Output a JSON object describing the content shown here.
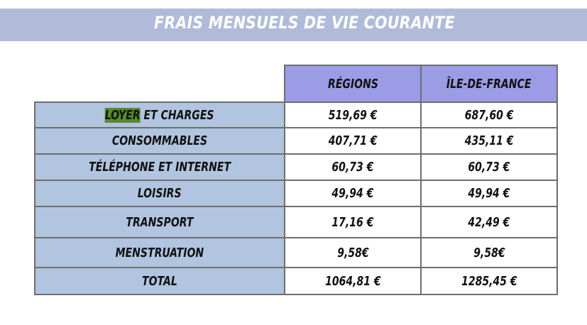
{
  "title": "FRAIS MENSUELS DE VIE COURANTE",
  "columns": [
    "RÉGIONS",
    "ÎLE-DE-FRANCE"
  ],
  "rows": [
    {
      "label": "LOYER",
      "label_suffix": " ET CHARGES",
      "regions": "519,69 €",
      "idf": "687,60 €"
    },
    {
      "label": "CONSOMMABLES",
      "regions": "407,71 €",
      "idf": "435,11 €"
    },
    {
      "label": "TÉLÉPHONE ET INTERNET",
      "regions": "60,73 €",
      "idf": "60,73 €"
    },
    {
      "label": "LOISIRS",
      "regions": "49,94 €",
      "idf": "49,94 €"
    },
    {
      "label": "TRANSPORT",
      "regions": "17,16 €",
      "idf": "42,49 €"
    },
    {
      "label": "MENSTRUATION",
      "regions": "9,58€",
      "idf": "9,58€"
    },
    {
      "label": "TOTAL",
      "regions": "1064,81 €",
      "idf": "1285,45 €"
    }
  ],
  "colors": {
    "banner": "#b1bbd9",
    "header_cells": "#9b9be6",
    "label_cells": "#b1c5e0",
    "highlight": "#5a8a2a"
  }
}
